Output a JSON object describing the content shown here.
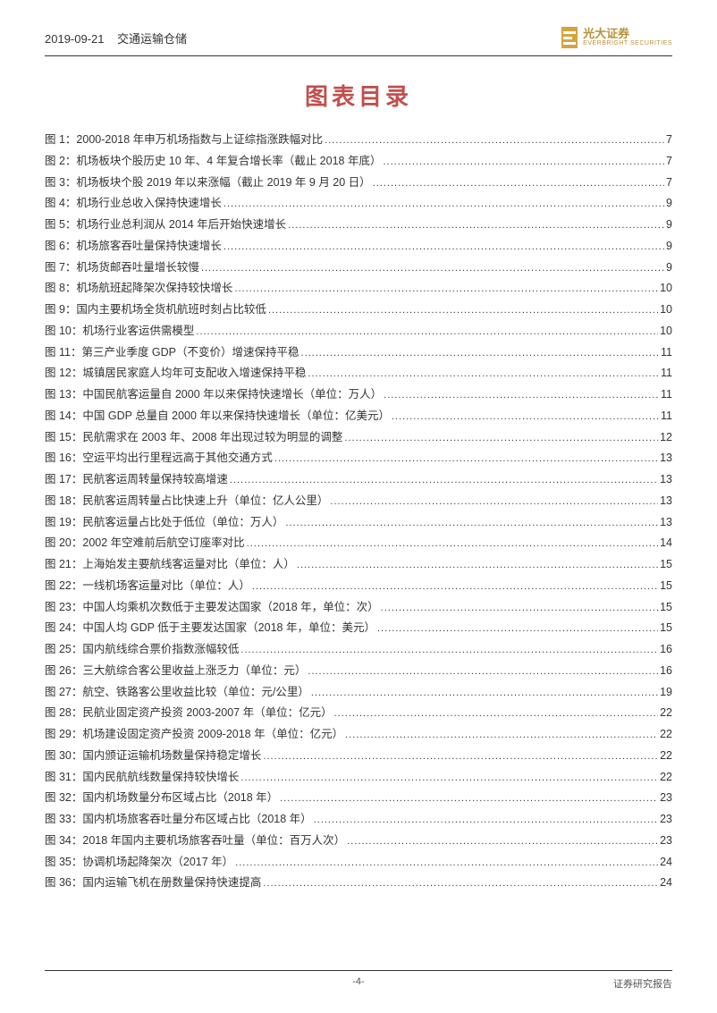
{
  "header": {
    "date": "2019-09-21",
    "category": "交通运输仓储",
    "logo_cn": "光大证券",
    "logo_en": "EVERBRIGHT SECURITIES"
  },
  "title": "图表目录",
  "toc": [
    {
      "label": "图 1：2000-2018 年申万机场指数与上证综指涨跌幅对比",
      "page": "7"
    },
    {
      "label": "图 2：机场板块个股历史 10 年、4 年复合增长率（截止 2018 年底）",
      "page": "7"
    },
    {
      "label": "图 3：机场板块个股 2019 年以来涨幅（截止 2019 年 9 月 20 日）",
      "page": "7"
    },
    {
      "label": "图 4：机场行业总收入保持快速增长",
      "page": "9"
    },
    {
      "label": "图 5：机场行业总利润从 2014 年后开始快速增长",
      "page": "9"
    },
    {
      "label": "图 6：机场旅客吞吐量保持快速增长",
      "page": "9"
    },
    {
      "label": "图 7：机场货邮吞吐量增长较慢",
      "page": "9"
    },
    {
      "label": "图 8：机场航班起降架次保持较快增长",
      "page": "10"
    },
    {
      "label": "图 9：国内主要机场全货机航班时刻占比较低",
      "page": "10"
    },
    {
      "label": "图 10：机场行业客运供需模型",
      "page": "10"
    },
    {
      "label": "图 11：第三产业季度 GDP（不变价）增速保持平稳",
      "page": "11"
    },
    {
      "label": "图 12：城镇居民家庭人均年可支配收入增速保持平稳",
      "page": "11"
    },
    {
      "label": "图 13：中国民航客运量自 2000 年以来保持快速增长（单位：万人）",
      "page": "11"
    },
    {
      "label": "图 14：中国 GDP 总量自 2000 年以来保持快速增长（单位：亿美元）",
      "page": "11"
    },
    {
      "label": "图 15：民航需求在 2003 年、2008 年出现过较为明显的调整",
      "page": "12"
    },
    {
      "label": "图 16：空运平均出行里程远高于其他交通方式",
      "page": "13"
    },
    {
      "label": "图 17：民航客运周转量保持较高增速",
      "page": "13"
    },
    {
      "label": "图 18：民航客运周转量占比快速上升（单位：亿人公里）",
      "page": "13"
    },
    {
      "label": "图 19：民航客运量占比处于低位（单位：万人）",
      "page": "13"
    },
    {
      "label": "图 20：2002 年空难前后航空订座率对比",
      "page": "14"
    },
    {
      "label": "图 21：上海始发主要航线客运量对比（单位：人）",
      "page": "15"
    },
    {
      "label": "图 22：一线机场客运量对比（单位：人）",
      "page": "15"
    },
    {
      "label": "图 23：中国人均乘机次数低于主要发达国家（2018 年，单位：次）",
      "page": "15"
    },
    {
      "label": "图 24：中国人均 GDP 低于主要发达国家（2018 年，单位：美元）",
      "page": "15"
    },
    {
      "label": "图 25：国内航线综合票价指数涨幅较低",
      "page": "16"
    },
    {
      "label": "图 26：三大航综合客公里收益上涨乏力（单位：元）",
      "page": "16"
    },
    {
      "label": "图 27：航空、铁路客公里收益比较（单位：元/公里）",
      "page": "19"
    },
    {
      "label": "图 28：民航业固定资产投资 2003-2007 年（单位：亿元）",
      "page": "22"
    },
    {
      "label": "图 29：机场建设固定资产投资 2009-2018 年（单位：亿元）",
      "page": "22"
    },
    {
      "label": "图 30：国内颁证运输机场数量保持稳定增长",
      "page": "22"
    },
    {
      "label": "图 31：国内民航航线数量保持较快增长",
      "page": "22"
    },
    {
      "label": "图 32：国内机场数量分布区域占比（2018 年）",
      "page": "23"
    },
    {
      "label": "图 33：国内机场旅客吞吐量分布区域占比（2018 年）",
      "page": "23"
    },
    {
      "label": "图 34：2018 年国内主要机场旅客吞吐量（单位：百万人次）",
      "page": "23"
    },
    {
      "label": "图 35：协调机场起降架次（2017 年）",
      "page": "24"
    },
    {
      "label": "图 36：国内运输飞机在册数量保持快速提高",
      "page": "24"
    }
  ],
  "footer": {
    "page_num": "-4-",
    "report_type": "证券研究报告"
  },
  "colors": {
    "title_color": "#c0504d",
    "logo_color": "#d4a441",
    "text_color": "#333333",
    "border_color": "#333333",
    "background": "#ffffff"
  }
}
